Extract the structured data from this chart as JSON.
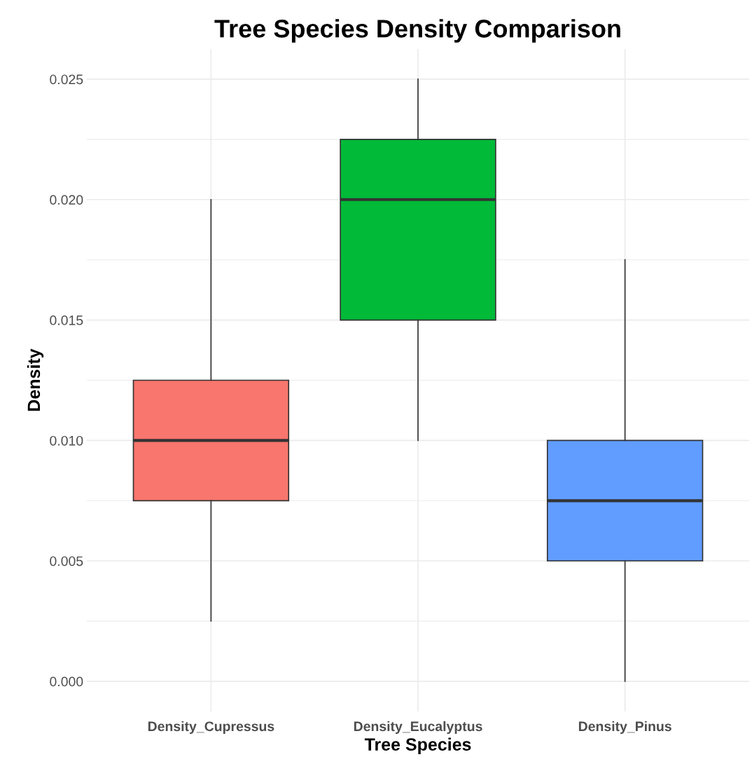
{
  "chart_data": {
    "type": "box",
    "title": "Tree Species Density Comparison",
    "xlabel": "Tree Species",
    "ylabel": "Density",
    "categories": [
      "Density_Cupressus",
      "Density_Eucalyptus",
      "Density_Pinus"
    ],
    "colors": [
      "#f8766d",
      "#00ba38",
      "#619cff"
    ],
    "boxes": [
      {
        "low": 0.0025,
        "q1": 0.0075,
        "median": 0.01,
        "q3": 0.0125,
        "high": 0.02
      },
      {
        "low": 0.01,
        "q1": 0.015,
        "median": 0.02,
        "q3": 0.0225,
        "high": 0.025
      },
      {
        "low": 0.0,
        "q1": 0.005,
        "median": 0.0075,
        "q3": 0.01,
        "high": 0.0175
      }
    ],
    "ylim": [
      -0.00125,
      0.02625
    ],
    "yticks": [
      {
        "value": 0,
        "label": "0.000"
      },
      {
        "value": 0.005,
        "label": "0.005"
      },
      {
        "value": 0.01,
        "label": "0.010"
      },
      {
        "value": 0.015,
        "label": "0.015"
      },
      {
        "value": 0.02,
        "label": "0.020"
      },
      {
        "value": 0.025,
        "label": "0.025"
      }
    ],
    "grid": true
  }
}
